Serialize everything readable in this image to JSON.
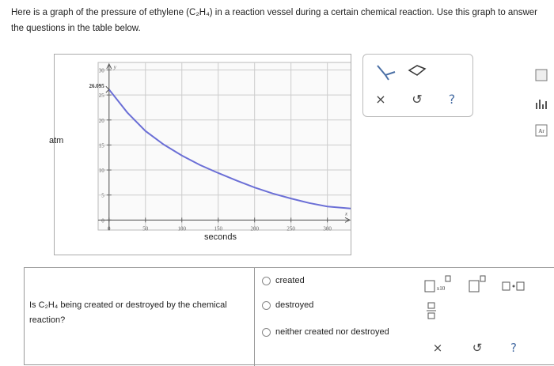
{
  "intro": "Here is a graph of the pressure of ethylene (C₂H₄) in a reaction vessel during a certain chemical reaction. Use this graph to answer the questions in the table below.",
  "chart_data": {
    "type": "line",
    "y_label": "atm",
    "x_label": "seconds",
    "x_axis_symbol": "x",
    "y_axis_symbol": "y",
    "annotation": "26.095",
    "x": [
      0,
      25,
      50,
      75,
      100,
      125,
      150,
      175,
      200,
      225,
      250,
      275,
      300,
      333
    ],
    "series": [
      {
        "name": "pressure",
        "color": "#6b6fd6",
        "values": [
          26.095,
          21.5,
          17.8,
          15.1,
          12.9,
          11.0,
          9.4,
          7.9,
          6.5,
          5.3,
          4.3,
          3.4,
          2.7,
          2.3
        ]
      }
    ],
    "xlim": [
      -15,
      333
    ],
    "ylim": [
      -2,
      31.5
    ],
    "xticks": [
      0,
      50,
      100,
      150,
      200,
      250,
      300
    ],
    "yticks": [
      0,
      5,
      10,
      15,
      20,
      25,
      30
    ],
    "grid": true
  },
  "tools": {
    "clear": "×",
    "undo": "↺",
    "help": "?"
  },
  "side": {
    "periodic_table": "Ar"
  },
  "question": {
    "text": "Is C₂H₄ being created or destroyed by the chemical reaction?",
    "options": [
      "created",
      "destroyed",
      "neither created nor destroyed"
    ]
  },
  "answer_tools": {
    "sci": "x10",
    "clear": "×",
    "undo": "↺",
    "help": "?"
  }
}
